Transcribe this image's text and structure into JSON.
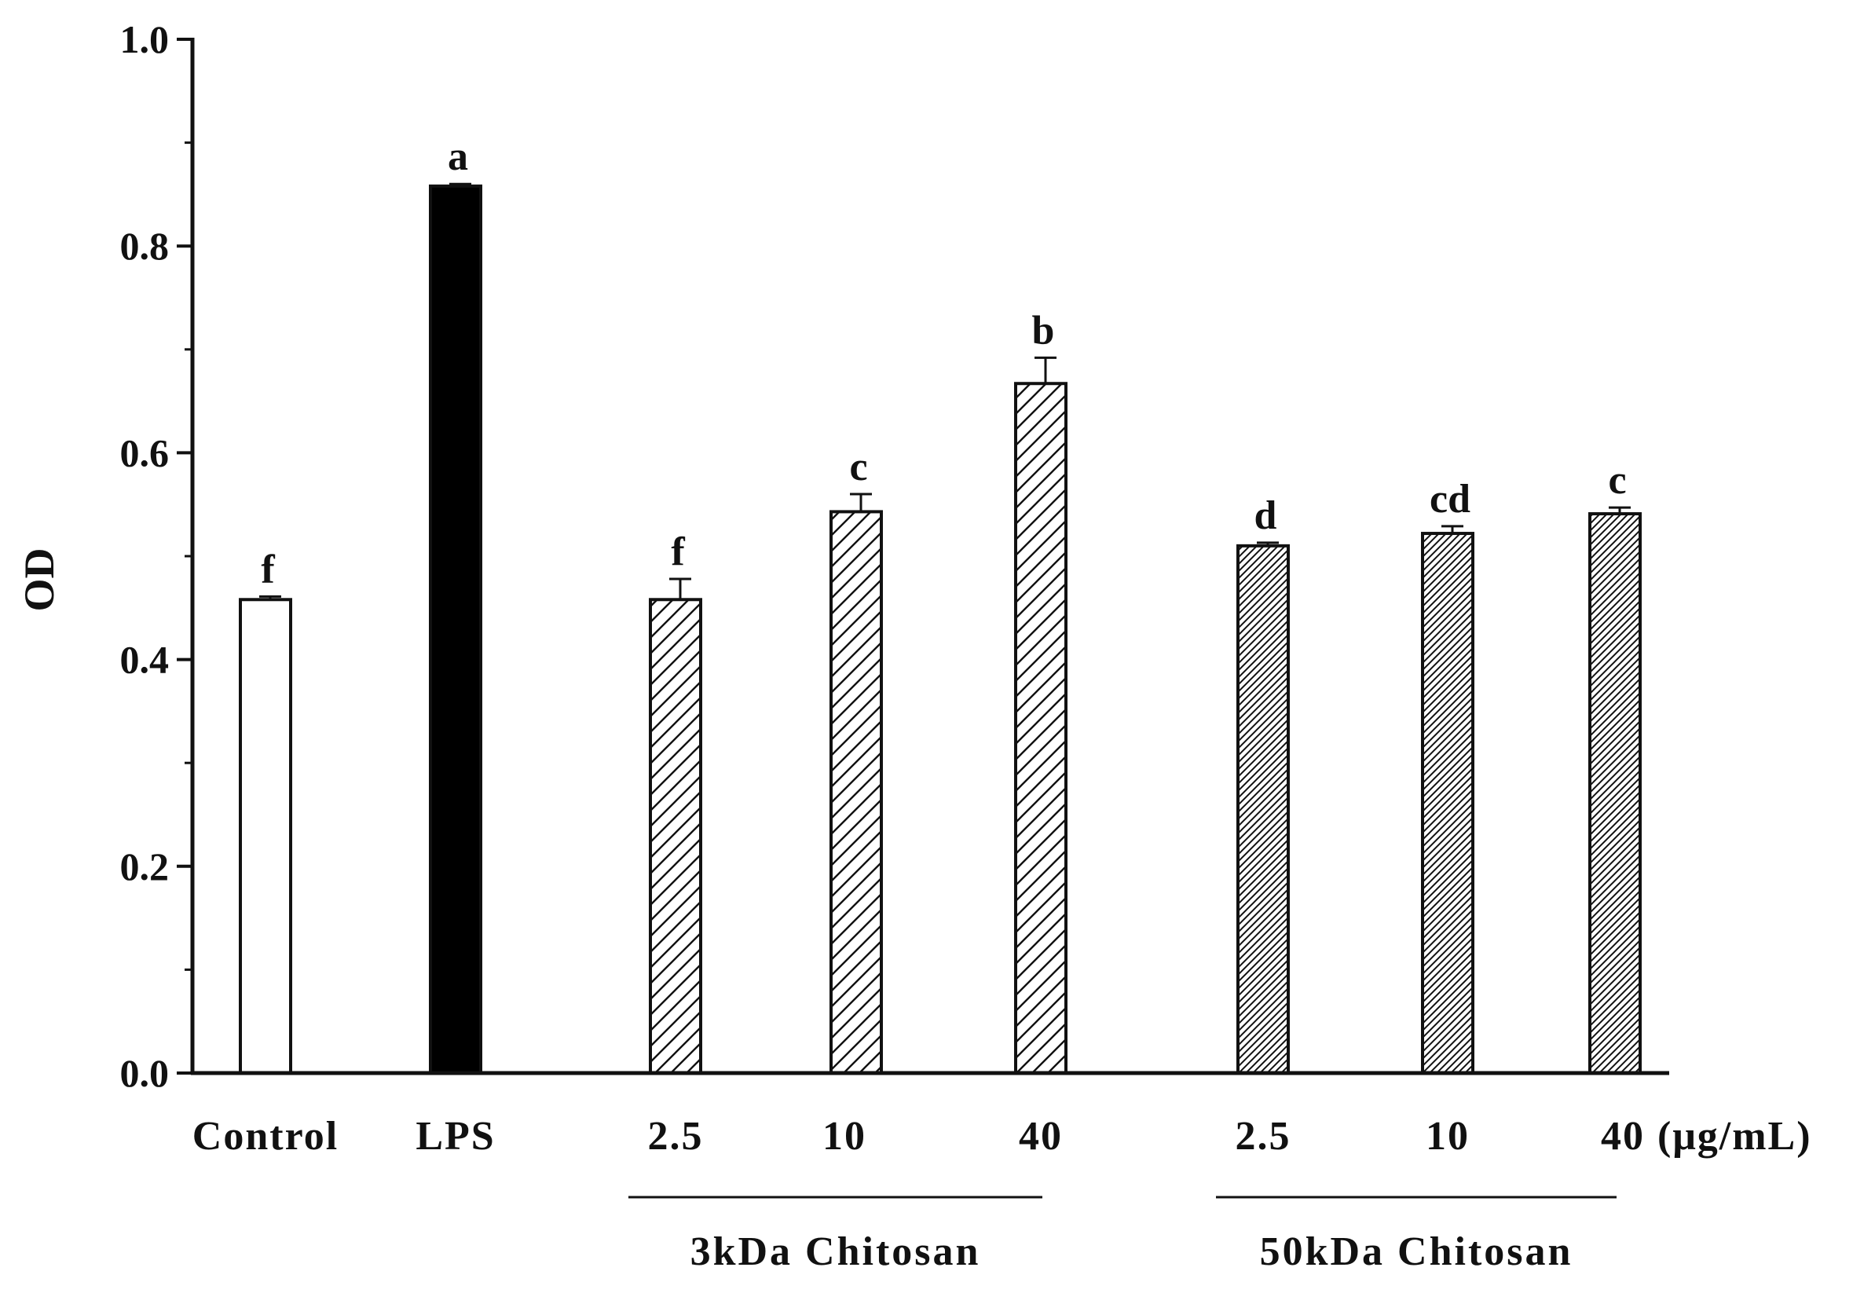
{
  "chart_data": {
    "type": "bar",
    "title": "",
    "ylabel": "OD",
    "xlabel": "",
    "ylim": [
      0,
      1.0
    ],
    "yticks": [
      "0.0",
      "0.2",
      "0.4",
      "0.6",
      "0.8",
      "1.0"
    ],
    "y_minor_step": 0.1,
    "categories": [
      "Control",
      "LPS",
      "2.5",
      "10",
      "40",
      "2.5",
      "10",
      "40"
    ],
    "values": [
      0.458,
      0.858,
      0.458,
      0.543,
      0.667,
      0.51,
      0.522,
      0.541
    ],
    "errors": [
      0.003,
      0.002,
      0.02,
      0.017,
      0.025,
      0.003,
      0.007,
      0.006
    ],
    "significance": [
      "f",
      "a",
      "f",
      "c",
      "b",
      "d",
      "cd",
      "c"
    ],
    "fills": [
      "white",
      "black",
      "hatch-wide",
      "hatch-wide",
      "hatch-wide",
      "hatch-dense",
      "hatch-dense",
      "hatch-dense"
    ],
    "unit_label": "(μg/mL)",
    "groups": [
      {
        "label": "3kDa Chitosan",
        "from": 2,
        "to": 4
      },
      {
        "label": "50kDa Chitosan",
        "from": 5,
        "to": 7
      }
    ]
  }
}
